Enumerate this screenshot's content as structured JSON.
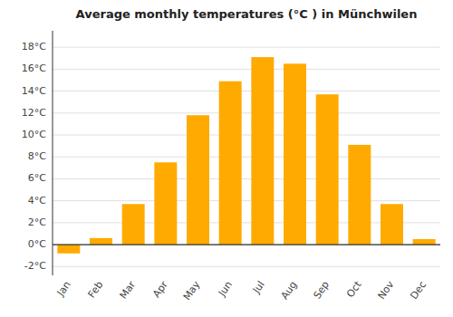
{
  "chart_data": {
    "type": "bar",
    "title": "Average monthly temperatures (°C ) in Münchwilen",
    "categories": [
      "Jan",
      "Feb",
      "Mar",
      "Apr",
      "May",
      "Jun",
      "Jul",
      "Aug",
      "Sep",
      "Oct",
      "Nov",
      "Dec"
    ],
    "values": [
      -0.8,
      0.6,
      3.7,
      7.5,
      11.8,
      14.9,
      17.1,
      16.5,
      13.7,
      9.1,
      3.7,
      0.5
    ],
    "color": "#FFAA00",
    "ylim": [
      -2.8,
      19.5
    ],
    "yticks": [
      {
        "value": -2,
        "label": "-2°C"
      },
      {
        "value": 0,
        "label": "0°C"
      },
      {
        "value": 2,
        "label": "2°C"
      },
      {
        "value": 4,
        "label": "4°C"
      },
      {
        "value": 6,
        "label": "6°C"
      },
      {
        "value": 8,
        "label": "8°C"
      },
      {
        "value": 10,
        "label": "10°C"
      },
      {
        "value": 12,
        "label": "12°C"
      },
      {
        "value": 14,
        "label": "14°C"
      },
      {
        "value": 16,
        "label": "16°C"
      },
      {
        "value": 18,
        "label": "18°C"
      }
    ],
    "grid": true
  }
}
